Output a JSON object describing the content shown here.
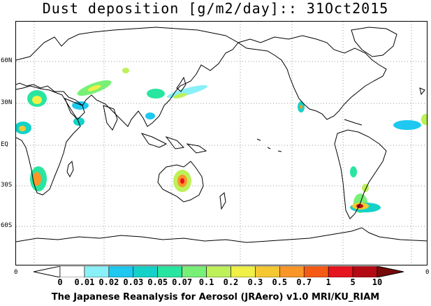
{
  "header": {
    "title": "Dust deposition [g/m2/day]:: 31Oct2015"
  },
  "map": {
    "latitude_labels": [
      "60N",
      "30N",
      "EQ",
      "30S",
      "60S"
    ],
    "edge_label_left": "0",
    "edge_label_right": "0",
    "gridline_color": "#9a9a9a",
    "coastline_color": "#000000"
  },
  "colorbar": {
    "labels": [
      "0",
      "0.01",
      "0.02",
      "0.03",
      "0.05",
      "0.07",
      "0.1",
      "0.2",
      "0.3",
      "0.5",
      "0.7",
      "1",
      "5",
      "10"
    ],
    "colors": [
      "#ffffff",
      "#ffffff",
      "#8af0f8",
      "#1ec8f0",
      "#14d2c8",
      "#28e6a0",
      "#78f078",
      "#bef05a",
      "#f0f046",
      "#f5c832",
      "#fa9628",
      "#f55a14",
      "#e6141e",
      "#b40a14",
      "#780a0a"
    ]
  },
  "footer": {
    "text": "The Japanese Reanalysis for Aerosol (JRAero) v1.0 MRI/KU_RIAM"
  }
}
